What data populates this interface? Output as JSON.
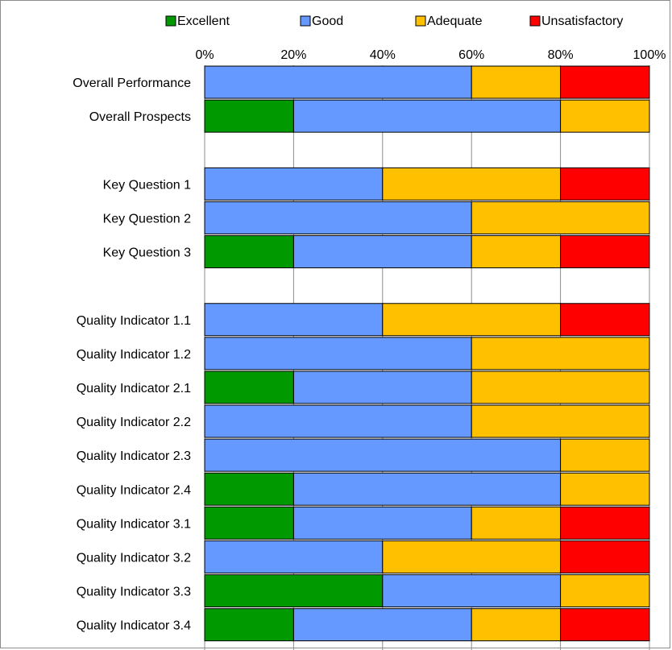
{
  "chart_data": {
    "type": "bar",
    "orientation": "horizontal",
    "stacked": "percent",
    "legend_position": "top",
    "grid": true,
    "xlim": [
      0,
      100
    ],
    "x_ticks": [
      "0%",
      "20%",
      "40%",
      "60%",
      "80%",
      "100%"
    ],
    "categories": [
      "Overall Performance",
      "Overall Prospects",
      "",
      "Key Question 1",
      "Key Question 2",
      "Key Question 3",
      "",
      "Quality Indicator 1.1",
      "Quality Indicator 1.2",
      "Quality Indicator 2.1",
      "Quality Indicator 2.2",
      "Quality Indicator 2.3",
      "Quality Indicator 2.4",
      "Quality Indicator 3.1",
      "Quality Indicator 3.2",
      "Quality Indicator 3.3",
      "Quality Indicator 3.4"
    ],
    "series": [
      {
        "name": "Excellent",
        "color": "#009900",
        "values": [
          0,
          20,
          null,
          0,
          0,
          20,
          null,
          0,
          0,
          20,
          0,
          0,
          20,
          20,
          0,
          40,
          20
        ]
      },
      {
        "name": "Good",
        "color": "#6699ff",
        "values": [
          60,
          60,
          null,
          40,
          60,
          40,
          null,
          40,
          60,
          40,
          60,
          80,
          60,
          40,
          40,
          40,
          40
        ]
      },
      {
        "name": "Adequate",
        "color": "#ffc000",
        "values": [
          20,
          20,
          null,
          40,
          40,
          20,
          null,
          40,
          40,
          40,
          40,
          20,
          20,
          20,
          40,
          20,
          20
        ]
      },
      {
        "name": "Unsatisfactory",
        "color": "#ff0000",
        "values": [
          20,
          0,
          null,
          20,
          0,
          20,
          null,
          20,
          0,
          0,
          0,
          0,
          0,
          20,
          20,
          0,
          20
        ]
      }
    ]
  }
}
